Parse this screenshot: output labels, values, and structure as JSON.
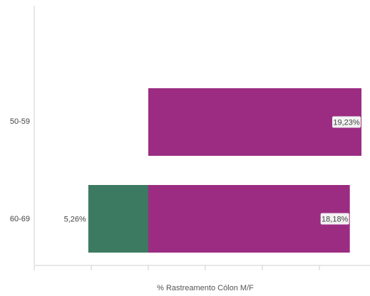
{
  "chart_data": {
    "type": "bar",
    "orientation": "horizontal",
    "diverging": true,
    "xlabel": "% Rastreamento Cólon M/F",
    "ylabel": "",
    "categories": [
      "50-59",
      "60-69"
    ],
    "series": [
      {
        "color": "#3d7a62",
        "side": "left",
        "values": [
          null,
          5.26
        ],
        "labels": [
          "",
          "5,26%"
        ]
      },
      {
        "color": "#9b2c82",
        "side": "right",
        "values": [
          19.23,
          18.18
        ],
        "labels": [
          "19,23%",
          "18,18%"
        ]
      }
    ],
    "xlim": [
      -10,
      20
    ],
    "grid": false,
    "legend": "none"
  }
}
